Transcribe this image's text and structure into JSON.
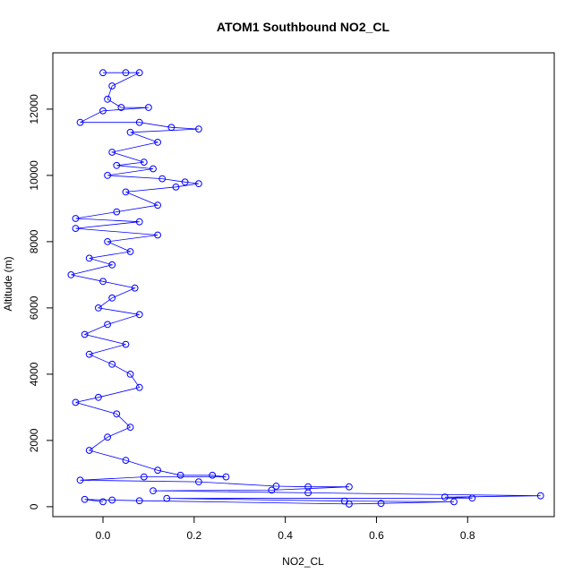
{
  "chart_data": {
    "type": "scatter",
    "title": "ATOM1 Southbound NO2_CL",
    "xlabel": "NO2_CL",
    "ylabel": "Altitude (m)",
    "xlim": [
      -0.11,
      0.99
    ],
    "ylim": [
      -300,
      13700
    ],
    "x_ticks": [
      0.0,
      0.2,
      0.4,
      0.6,
      0.8
    ],
    "x_tick_labels": [
      "0.0",
      "0.2",
      "0.4",
      "0.6",
      "0.8"
    ],
    "y_ticks": [
      0,
      2000,
      4000,
      6000,
      8000,
      10000,
      12000
    ],
    "y_tick_labels": [
      "0",
      "2000",
      "4000",
      "6000",
      "8000",
      "10000",
      "12000"
    ],
    "grid": false,
    "legend": "none",
    "series": [
      {
        "color": "#0000FF",
        "marker": "open-circle",
        "connected": true,
        "points": [
          {
            "x": 0.0,
            "y": 13100
          },
          {
            "x": 0.05,
            "y": 13100
          },
          {
            "x": 0.08,
            "y": 13100
          },
          {
            "x": 0.02,
            "y": 12700
          },
          {
            "x": 0.01,
            "y": 12300
          },
          {
            "x": 0.04,
            "y": 12050
          },
          {
            "x": 0.1,
            "y": 12050
          },
          {
            "x": 0.0,
            "y": 11950
          },
          {
            "x": -0.05,
            "y": 11600
          },
          {
            "x": 0.08,
            "y": 11600
          },
          {
            "x": 0.15,
            "y": 11450
          },
          {
            "x": 0.21,
            "y": 11400
          },
          {
            "x": 0.06,
            "y": 11300
          },
          {
            "x": 0.12,
            "y": 11000
          },
          {
            "x": 0.02,
            "y": 10700
          },
          {
            "x": 0.09,
            "y": 10400
          },
          {
            "x": 0.03,
            "y": 10300
          },
          {
            "x": 0.11,
            "y": 10200
          },
          {
            "x": 0.01,
            "y": 10000
          },
          {
            "x": 0.13,
            "y": 9900
          },
          {
            "x": 0.18,
            "y": 9800
          },
          {
            "x": 0.21,
            "y": 9750
          },
          {
            "x": 0.16,
            "y": 9650
          },
          {
            "x": 0.05,
            "y": 9500
          },
          {
            "x": 0.12,
            "y": 9100
          },
          {
            "x": 0.03,
            "y": 8900
          },
          {
            "x": -0.06,
            "y": 8700
          },
          {
            "x": 0.08,
            "y": 8600
          },
          {
            "x": -0.06,
            "y": 8400
          },
          {
            "x": 0.12,
            "y": 8200
          },
          {
            "x": 0.01,
            "y": 8000
          },
          {
            "x": 0.06,
            "y": 7700
          },
          {
            "x": -0.03,
            "y": 7500
          },
          {
            "x": 0.02,
            "y": 7300
          },
          {
            "x": -0.07,
            "y": 7000
          },
          {
            "x": 0.0,
            "y": 6800
          },
          {
            "x": 0.07,
            "y": 6600
          },
          {
            "x": 0.02,
            "y": 6300
          },
          {
            "x": -0.01,
            "y": 6000
          },
          {
            "x": 0.08,
            "y": 5800
          },
          {
            "x": 0.01,
            "y": 5500
          },
          {
            "x": -0.04,
            "y": 5200
          },
          {
            "x": 0.05,
            "y": 4900
          },
          {
            "x": -0.03,
            "y": 4600
          },
          {
            "x": 0.02,
            "y": 4300
          },
          {
            "x": 0.06,
            "y": 4000
          },
          {
            "x": 0.08,
            "y": 3600
          },
          {
            "x": -0.01,
            "y": 3300
          },
          {
            "x": -0.06,
            "y": 3150
          },
          {
            "x": 0.03,
            "y": 2800
          },
          {
            "x": 0.06,
            "y": 2400
          },
          {
            "x": 0.01,
            "y": 2100
          },
          {
            "x": -0.03,
            "y": 1700
          },
          {
            "x": 0.05,
            "y": 1400
          },
          {
            "x": 0.12,
            "y": 1100
          },
          {
            "x": 0.17,
            "y": 950
          },
          {
            "x": 0.24,
            "y": 950
          },
          {
            "x": 0.27,
            "y": 900
          },
          {
            "x": 0.09,
            "y": 900
          },
          {
            "x": -0.05,
            "y": 800
          },
          {
            "x": 0.21,
            "y": 750
          },
          {
            "x": 0.38,
            "y": 620
          },
          {
            "x": 0.45,
            "y": 600
          },
          {
            "x": 0.54,
            "y": 600
          },
          {
            "x": 0.37,
            "y": 500
          },
          {
            "x": 0.11,
            "y": 480
          },
          {
            "x": 0.45,
            "y": 420
          },
          {
            "x": 0.96,
            "y": 330
          },
          {
            "x": 0.75,
            "y": 290
          },
          {
            "x": 0.81,
            "y": 260
          },
          {
            "x": 0.14,
            "y": 250
          },
          {
            "x": 0.53,
            "y": 170
          },
          {
            "x": 0.77,
            "y": 150
          },
          {
            "x": 0.61,
            "y": 100
          },
          {
            "x": 0.54,
            "y": 80
          },
          {
            "x": 0.08,
            "y": 180
          },
          {
            "x": 0.02,
            "y": 200
          },
          {
            "x": -0.04,
            "y": 220
          },
          {
            "x": 0.0,
            "y": 150
          }
        ]
      }
    ]
  }
}
